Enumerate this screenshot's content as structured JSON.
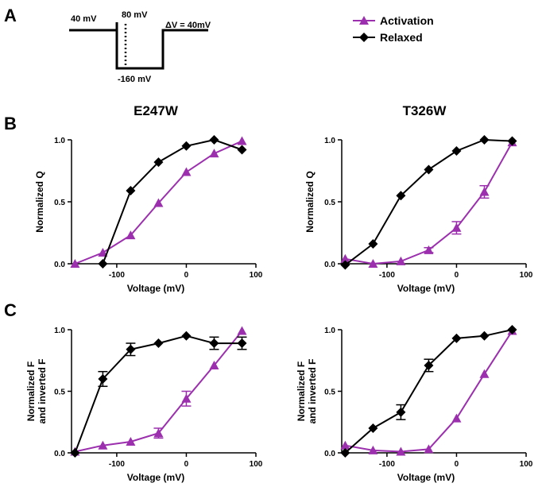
{
  "panel_labels": {
    "a": "A",
    "b": "B",
    "c": "C"
  },
  "protocol": {
    "hold_label": "40 mV",
    "step_label": "80 mV",
    "low_label": "-160 mV",
    "delta_label": "ΔV = 40mV"
  },
  "legend": {
    "activation": {
      "label": "Activation",
      "color": "#9b2fae",
      "marker": "triangle"
    },
    "relaxed": {
      "label": "Relaxed",
      "color": "#000000",
      "marker": "diamond"
    }
  },
  "column_titles": [
    "E247W",
    "T326W"
  ],
  "chart_data": [
    {
      "id": "B-left",
      "type": "line",
      "row": "B",
      "title": "E247W",
      "xlabel": "Voltage (mV)",
      "ylabel": [
        "Normalized Q"
      ],
      "xlim": [
        -165,
        100
      ],
      "ylim": [
        0,
        1.0
      ],
      "xticks": [
        -100,
        0,
        100
      ],
      "xticklabels": [
        "-100",
        "0",
        "100"
      ],
      "yticks": [
        0,
        0.5,
        1.0
      ],
      "yticklabels": [
        "0.0",
        "0.5",
        "1.0"
      ],
      "series": [
        {
          "name": "Activation",
          "x": [
            -160,
            -120,
            -80,
            -40,
            0,
            40,
            80
          ],
          "y": [
            0.0,
            0.09,
            0.23,
            0.49,
            0.74,
            0.89,
            0.99
          ],
          "err": [
            0,
            0,
            0,
            0,
            0,
            0,
            0
          ]
        },
        {
          "name": "Relaxed",
          "x": [
            -120,
            -80,
            -40,
            0,
            40,
            80
          ],
          "y": [
            0.0,
            0.59,
            0.82,
            0.95,
            1.0,
            0.92
          ],
          "err": [
            0,
            0,
            0,
            0,
            0,
            0
          ]
        }
      ]
    },
    {
      "id": "B-right",
      "type": "line",
      "row": "B",
      "title": "T326W",
      "xlabel": "Voltage (mV)",
      "ylabel": [
        "Normalized Q"
      ],
      "xlim": [
        -165,
        100
      ],
      "ylim": [
        0,
        1.0
      ],
      "xticks": [
        -100,
        0,
        100
      ],
      "xticklabels": [
        "-100",
        "0",
        "100"
      ],
      "yticks": [
        0,
        0.5,
        1.0
      ],
      "yticklabels": [
        "0.0",
        "0.5",
        "1.0"
      ],
      "series": [
        {
          "name": "Activation",
          "x": [
            -160,
            -120,
            -80,
            -40,
            0,
            40,
            80
          ],
          "y": [
            0.04,
            0.0,
            0.02,
            0.11,
            0.29,
            0.58,
            0.98
          ],
          "err": [
            0,
            0,
            0,
            0.02,
            0.05,
            0.05,
            0
          ]
        },
        {
          "name": "Relaxed",
          "x": [
            -160,
            -120,
            -80,
            -40,
            0,
            40,
            80
          ],
          "y": [
            -0.01,
            0.16,
            0.55,
            0.76,
            0.91,
            1.0,
            0.99
          ],
          "err": [
            0,
            0,
            0,
            0,
            0,
            0,
            0
          ]
        }
      ]
    },
    {
      "id": "C-left",
      "type": "line",
      "row": "C",
      "xlabel": "Voltage (mV)",
      "ylabel": [
        "Normalized F",
        "and inverted F"
      ],
      "xlim": [
        -165,
        100
      ],
      "ylim": [
        0,
        1.0
      ],
      "xticks": [
        -100,
        0,
        100
      ],
      "xticklabels": [
        "-100",
        "0",
        "100"
      ],
      "yticks": [
        0,
        0.5,
        1.0
      ],
      "yticklabels": [
        "0.0",
        "0.5",
        "1.0"
      ],
      "series": [
        {
          "name": "Activation",
          "x": [
            -160,
            -120,
            -80,
            -40,
            0,
            40,
            80
          ],
          "y": [
            0.01,
            0.06,
            0.09,
            0.16,
            0.44,
            0.71,
            0.99
          ],
          "err": [
            0,
            0,
            0,
            0.04,
            0.06,
            0,
            0
          ]
        },
        {
          "name": "Relaxed",
          "x": [
            -160,
            -120,
            -80,
            -40,
            0,
            40,
            80
          ],
          "y": [
            0.0,
            0.6,
            0.84,
            0.89,
            0.95,
            0.89,
            0.89
          ],
          "err": [
            0,
            0.06,
            0.05,
            0,
            0,
            0.05,
            0.05
          ]
        }
      ]
    },
    {
      "id": "C-right",
      "type": "line",
      "row": "C",
      "xlabel": "Voltage (mV)",
      "ylabel": [
        "Normalized F",
        "and inverted F"
      ],
      "xlim": [
        -165,
        100
      ],
      "ylim": [
        0,
        1.0
      ],
      "xticks": [
        -100,
        0,
        100
      ],
      "xticklabels": [
        "-100",
        "0",
        "100"
      ],
      "yticks": [
        0,
        0.5,
        1.0
      ],
      "yticklabels": [
        "0.0",
        "0.5",
        "1.0"
      ],
      "series": [
        {
          "name": "Activation",
          "x": [
            -160,
            -120,
            -80,
            -40,
            0,
            40,
            80
          ],
          "y": [
            0.06,
            0.02,
            0.01,
            0.03,
            0.28,
            0.64,
            0.99
          ],
          "err": [
            0,
            0,
            0,
            0,
            0,
            0,
            0
          ]
        },
        {
          "name": "Relaxed",
          "x": [
            -160,
            -120,
            -80,
            -40,
            0,
            40,
            80
          ],
          "y": [
            0.0,
            0.2,
            0.33,
            0.71,
            0.93,
            0.95,
            1.0
          ],
          "err": [
            0,
            0,
            0.06,
            0.05,
            0,
            0,
            0
          ]
        }
      ]
    }
  ]
}
